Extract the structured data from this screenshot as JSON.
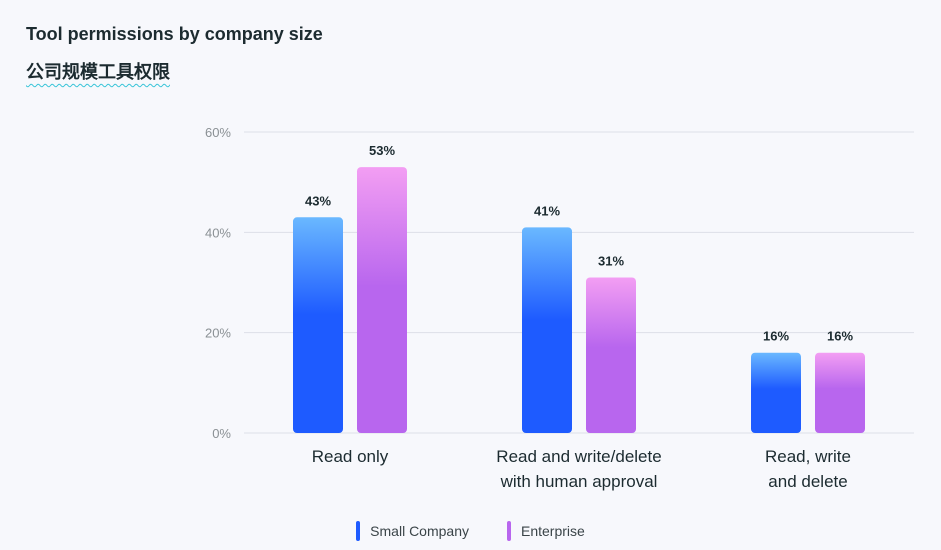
{
  "header": {
    "title": "Tool permissions by company size",
    "subtitle": "公司规模工具权限"
  },
  "colors": {
    "small_top": "#6ab8ff",
    "small_bottom": "#1e5bff",
    "enterprise_top": "#f39ef3",
    "enterprise_bottom": "#b866ee",
    "grid": "#dcdfe8",
    "text": "#1c2b30",
    "tick": "#8a9094"
  },
  "chart_data": {
    "type": "bar",
    "title": "Tool permissions by company size",
    "categories": [
      [
        "Read only"
      ],
      [
        "Read and write/delete",
        "with human approval"
      ],
      [
        "Read, write",
        "and delete"
      ]
    ],
    "series": [
      {
        "name": "Small Company",
        "values": [
          43,
          41,
          16
        ]
      },
      {
        "name": "Enterprise",
        "values": [
          53,
          31,
          16
        ]
      }
    ],
    "data_label_suffix": "%",
    "ylim": [
      0,
      60
    ],
    "yticks": [
      0,
      20,
      40,
      60
    ],
    "ytick_labels": [
      "0%",
      "20%",
      "40%",
      "60%"
    ],
    "grid": true,
    "legend": "bottom-center"
  }
}
